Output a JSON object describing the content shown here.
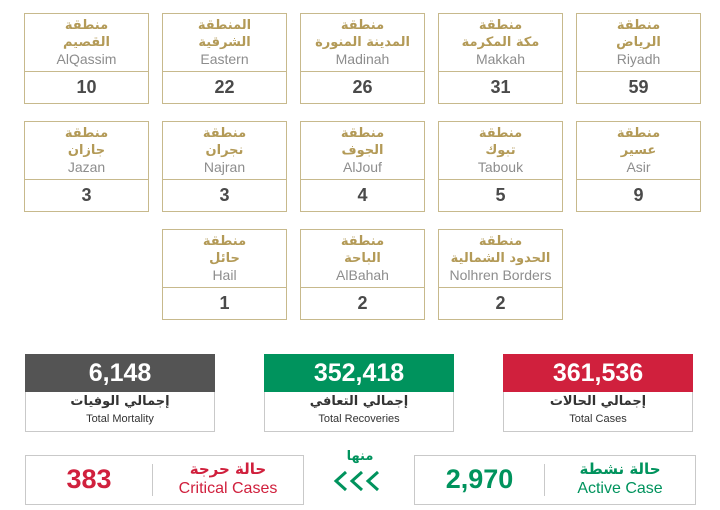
{
  "colors": {
    "gold": "#b39a57",
    "mortality": "#545454",
    "recoveries": "#00935d",
    "cases": "#d0203d",
    "critical_text": "#d0203d",
    "active_text": "#00935d"
  },
  "regions": [
    {
      "ar_line1": "منطقة",
      "ar_line2": "الرياض",
      "en": "Riyadh",
      "count": "59"
    },
    {
      "ar_line1": "منطقة",
      "ar_line2": "مكة المكرمة",
      "en": "Makkah",
      "count": "31"
    },
    {
      "ar_line1": "منطقة",
      "ar_line2": "المدينة المنورة",
      "en": "Madinah",
      "count": "26"
    },
    {
      "ar_line1": "المنطقة",
      "ar_line2": "الشرقية",
      "en": "Eastern",
      "count": "22"
    },
    {
      "ar_line1": "منطقة",
      "ar_line2": "القصيم",
      "en": "AlQassim",
      "count": "10"
    },
    {
      "ar_line1": "منطقة",
      "ar_line2": "عسير",
      "en": "Asir",
      "count": "9"
    },
    {
      "ar_line1": "منطقة",
      "ar_line2": "تبوك",
      "en": "Tabouk",
      "count": "5"
    },
    {
      "ar_line1": "منطقة",
      "ar_line2": "الجوف",
      "en": "AlJouf",
      "count": "4"
    },
    {
      "ar_line1": "منطقة",
      "ar_line2": "نجران",
      "en": "Najran",
      "count": "3"
    },
    {
      "ar_line1": "منطقة",
      "ar_line2": "جازان",
      "en": "Jazan",
      "count": "3"
    },
    {
      "ar_line1": "منطقة",
      "ar_line2": "الحدود الشمالية",
      "en": "Nolhren Borders",
      "count": "2"
    },
    {
      "ar_line1": "منطقة",
      "ar_line2": "الباحة",
      "en": "AlBahah",
      "count": "2"
    },
    {
      "ar_line1": "منطقة",
      "ar_line2": "حائل",
      "en": "Hail",
      "count": "1"
    }
  ],
  "totals": {
    "cases": {
      "value": "361,536",
      "ar": "إجمالي الحالات",
      "en": "Total Cases"
    },
    "recoveries": {
      "value": "352,418",
      "ar": "إجمالي التعافي",
      "en": "Total Recoveries"
    },
    "mortality": {
      "value": "6,148",
      "ar": "إجمالي الوفيات",
      "en": "Total Mortality"
    }
  },
  "active": {
    "value": "2,970",
    "ar": "حالة نشطة",
    "en": "Active Case"
  },
  "critical": {
    "value": "383",
    "ar": "حالة حرجة",
    "en": "Critical Cases"
  },
  "minha": {
    "label": "منها",
    "arrows_icon": "triple-chevron-left-icon"
  }
}
